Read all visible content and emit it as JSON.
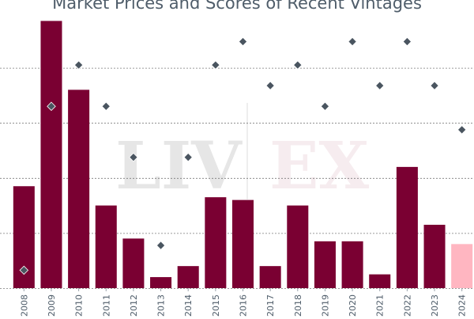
{
  "chart_data": {
    "type": "bar",
    "title": "Market Prices and Scores of Recent Vintages",
    "categories": [
      "2008",
      "2009",
      "2010",
      "2011",
      "2012",
      "2013",
      "2014",
      "2015",
      "2016",
      "2017",
      "2018",
      "2019",
      "2020",
      "2021",
      "2022",
      "2023",
      "2024"
    ],
    "series": [
      {
        "kind": "bar",
        "values": [
          37,
          97,
          72,
          30,
          18,
          4,
          8,
          33,
          32,
          8,
          30,
          17,
          17,
          5,
          44,
          23,
          16
        ],
        "colors": [
          "#7a0032",
          "#7a0032",
          "#7a0032",
          "#7a0032",
          "#7a0032",
          "#7a0032",
          "#7a0032",
          "#7a0032",
          "#7a0032",
          "#7a0032",
          "#7a0032",
          "#7a0032",
          "#7a0032",
          "#7a0032",
          "#7a0032",
          "#7a0032",
          "#ffb6c1"
        ]
      },
      {
        "kind": "scatter",
        "marker": "diamond",
        "color": "#4a5560",
        "values": [
          6.5,
          66,
          81,
          66,
          47.5,
          15.5,
          47.5,
          81,
          89.5,
          73.5,
          81,
          66,
          89.5,
          73.5,
          89.5,
          73.5,
          57.5
        ]
      }
    ],
    "ylim": [
      0,
      100
    ],
    "yticks": [
      0,
      20,
      40,
      60,
      80
    ],
    "grid": "horizontal dashed",
    "xtick_rotation": 90,
    "watermark_left": "LIV",
    "watermark_right": "EX"
  }
}
